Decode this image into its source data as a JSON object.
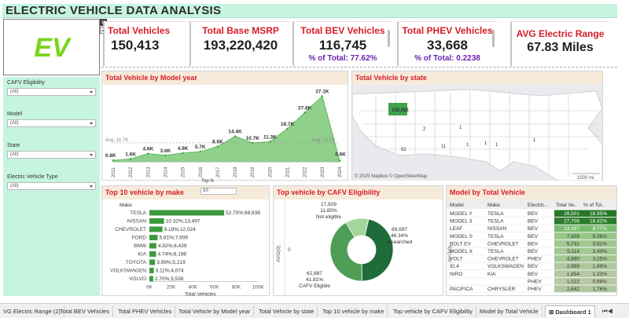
{
  "header": {
    "title": "ELECTRIC VEHICLE DATA ANALYSIS"
  },
  "logo": {
    "text": "EV"
  },
  "logo_controls": {
    "close": "✕"
  },
  "kpis": [
    {
      "label": "Total Vehicles",
      "value": "150,413",
      "pct": ""
    },
    {
      "label": "Total Base MSRP",
      "value": "193,220,420",
      "pct": ""
    },
    {
      "label": "Total BEV Vehicles",
      "value": "116,745",
      "pct": "% of Total: 77.62%"
    },
    {
      "label": "Total PHEV Vehicles",
      "value": "33,668",
      "pct": "% of Total:  0.2238"
    },
    {
      "label": "AVG Electric Range",
      "value": "67.83 Miles",
      "pct": ""
    }
  ],
  "filters": [
    {
      "label": "CAFV Eligibility",
      "value": "(All)"
    },
    {
      "label": "Model",
      "value": "(All)"
    },
    {
      "label": "State",
      "value": "(All)"
    },
    {
      "label": "Electric Vehicle Type",
      "value": "(All)"
    }
  ],
  "panels": {
    "model_year": "Total Vehicle by Model year",
    "state": "Total Vehicle by state",
    "top10": "Top 10 vehicle by make",
    "cafv": "Top vehicle by CAFV Eligibility",
    "model_total": "Model by Total Vehicle"
  },
  "map": {
    "attribution": "© 2025 Mapbox © OpenStreetMap",
    "scale": "1500 mi",
    "labels": [
      "150,082",
      "92",
      "11",
      "2",
      "1",
      "1",
      "1",
      "1",
      "1"
    ]
  },
  "top_n": {
    "label": "Top N",
    "value": "10"
  },
  "chart_data": [
    {
      "type": "area",
      "title": "Total Vehicle by Model year",
      "x": [
        "2011",
        "2012",
        "2013",
        "2014",
        "2015",
        "2016",
        "2017",
        "2018",
        "2019",
        "2020",
        "2021",
        "2022",
        "2023",
        "2024"
      ],
      "values": [
        800,
        1600,
        4600,
        3600,
        4900,
        5700,
        8600,
        14400,
        10700,
        11300,
        18700,
        27800,
        37100,
        600
      ],
      "data_labels": [
        "0.8K",
        "1.6K",
        "4.6K",
        "3.6K",
        "4.9K",
        "5.7K",
        "8.6K",
        "14.4K",
        "10.7K",
        "11.3K",
        "18.7K",
        "27.8K",
        "37.1K",
        "0.6K"
      ],
      "reference_line": {
        "label": "Avg: 10.7K",
        "value": 10700
      },
      "color": "#5cb85c"
    },
    {
      "type": "bar",
      "title": "Top 10 vehicle by make",
      "categories": [
        "TESLA",
        "NISSAN",
        "CHEVROLET",
        "FORD",
        "BMW",
        "KIA",
        "TOYOTA",
        "VOLKSWAGEN",
        "VOLVO"
      ],
      "values": [
        68939,
        13497,
        12024,
        7609,
        6439,
        6198,
        5219,
        4074,
        3536
      ],
      "data_labels": [
        "52.70%;68,939",
        "10.32%;13,497",
        "9.19%;12,024",
        "5.81%;7,609",
        "4.92%;6,439",
        "4.74%;6,198",
        "3.99%;5,219",
        "3.11%;4,074",
        "2.70%;3,536"
      ],
      "xlabel": "Total Vehicles",
      "ylabel": "Make",
      "ticks": [
        "0K",
        "20K",
        "40K",
        "60K",
        "80K",
        "100K"
      ],
      "xlim": [
        0,
        100000
      ],
      "color": "#3d9b3d"
    },
    {
      "type": "pie",
      "title": "Top vehicle by CAFV Eligibility",
      "ylabel": "AVG(0)",
      "axis_tick": "0",
      "slices": [
        {
          "name": "researched",
          "value": 69697,
          "label": [
            "69,697",
            "46.34%",
            "researched"
          ],
          "color": "#1f6b3a"
        },
        {
          "name": "CAFV Eligible",
          "value": 62887,
          "label": [
            "62,887",
            "41.81%",
            "CAFV Eligible"
          ],
          "color": "#4f9e57"
        },
        {
          "name": "Not eligible",
          "value": 17829,
          "label": [
            "17,829",
            "11.85%",
            "Not eligible"
          ],
          "color": "#a2d69b"
        }
      ]
    },
    {
      "type": "table",
      "title": "Model by Total Vehicle",
      "ylabel": "AVG(0)",
      "axis_tick": "0",
      "columns": [
        "Model",
        "Make",
        "Electric..",
        "Total Ve..",
        "% of Tot.."
      ],
      "rows": [
        [
          "MODEL Y",
          "TESLA",
          "BEV",
          "28,501",
          "18.95%"
        ],
        [
          "MODEL 3",
          "TESLA",
          "BEV",
          "27,708",
          "18.42%"
        ],
        [
          "LEAF",
          "NISSAN",
          "BEV",
          "13,187",
          "8.77%"
        ],
        [
          "MODEL S",
          "TESLA",
          "BEV",
          "7,609",
          "5.06%"
        ],
        [
          "BOLT EV",
          "CHEVROLET",
          "BEV",
          "5,732",
          "3.81%"
        ],
        [
          "MODEL X",
          "TESLA",
          "BEV",
          "5,114",
          "3.40%"
        ],
        [
          "VOLT",
          "CHEVROLET",
          "PHEV",
          "4,890",
          "3.25%"
        ],
        [
          "ID.4",
          "VOLKSWAGEN",
          "BEV",
          "2,999",
          "1.99%"
        ],
        [
          "NIRO",
          "KIA",
          "BEV",
          "1,854",
          "1.23%"
        ],
        [
          "",
          "",
          "PHEV",
          "1,022",
          "0.68%"
        ],
        [
          "PACIFICA",
          "CHRYSLER",
          "PHEV",
          "2,642",
          "1.76%"
        ]
      ],
      "totals": [
        28501,
        27708,
        13187,
        7609,
        5732,
        5114,
        4890,
        2999,
        1854,
        1022,
        2642
      ]
    }
  ],
  "tabs": [
    "VG Electric Range (2)",
    "Total BEV Vehicles",
    "Total PHEV Vehicles",
    "Total Vehicle by Model year",
    "Total Vehicle by state",
    "Top 10 vehicle by make",
    "Top vehicle by CAFV Eligibility",
    "Model by Total Vehicle",
    "Dashboard 1"
  ],
  "colors": {
    "accent_red": "#d61f26",
    "pct_purple": "#6a22b0",
    "filter_bg": "#c6f5df",
    "panel_header": "#f6eada"
  }
}
